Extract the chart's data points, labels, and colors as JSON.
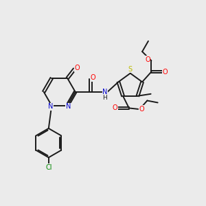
{
  "bg_color": "#ebebeb",
  "bond_color": "#1a1a1a",
  "atom_colors": {
    "O": "#ff0000",
    "N": "#0000cc",
    "S": "#bbbb00",
    "Cl": "#008800",
    "C": "#1a1a1a",
    "H": "#1a1a1a"
  },
  "figsize": [
    3.0,
    3.0
  ],
  "dpi": 100
}
